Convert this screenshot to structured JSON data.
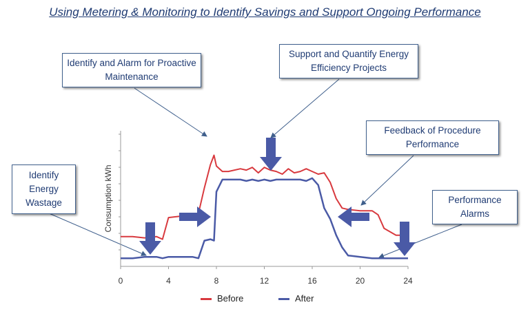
{
  "title": "Using Metering & Monitoring to Identify Savings and Support Ongoing Performance",
  "callouts": {
    "proactive": "Identify and Alarm for Proactive Maintenance",
    "support": "Support and Quantify Energy Efficiency Projects",
    "feedback": "Feedback of Procedure Performance",
    "wastage": "Identify Energy Wastage",
    "alarms": "Performance Alarms"
  },
  "colors": {
    "before": "#d8393e",
    "after": "#4a5aa6",
    "arrow": "#4a5aa6",
    "text": "#1f3b73"
  },
  "chart_data": {
    "type": "line",
    "title": "",
    "xlabel": "",
    "ylabel": "Consumption kWh",
    "xlim": [
      0,
      24
    ],
    "ylim": [
      0,
      10
    ],
    "xticks": [
      0,
      4,
      8,
      12,
      16,
      20,
      24
    ],
    "x": [
      0,
      1,
      2,
      3,
      3.5,
      4,
      5,
      6,
      6.5,
      7,
      7.5,
      7.8,
      8,
      8.5,
      9,
      10,
      10.5,
      11,
      11.5,
      12,
      12.5,
      13,
      13.5,
      14,
      14.5,
      15,
      15.5,
      16,
      16.5,
      17,
      17.5,
      18,
      18.5,
      19,
      20,
      21,
      21.5,
      22,
      23,
      24
    ],
    "series": [
      {
        "name": "Before",
        "values": [
          2.2,
          2.2,
          2.1,
          2.2,
          2.0,
          3.6,
          3.7,
          3.7,
          3.9,
          5.8,
          7.5,
          8.2,
          7.4,
          7.0,
          7.0,
          7.2,
          7.1,
          7.3,
          6.9,
          7.3,
          7.1,
          7.0,
          6.8,
          7.2,
          6.9,
          7.0,
          7.2,
          7.0,
          6.8,
          6.9,
          6.2,
          5.0,
          4.3,
          4.2,
          4.1,
          4.1,
          3.8,
          2.8,
          2.3,
          2.3
        ]
      },
      {
        "name": "After",
        "values": [
          0.6,
          0.6,
          0.7,
          0.7,
          0.6,
          0.7,
          0.7,
          0.7,
          0.6,
          1.9,
          2.0,
          1.9,
          5.5,
          6.4,
          6.4,
          6.4,
          6.3,
          6.4,
          6.3,
          6.4,
          6.3,
          6.4,
          6.4,
          6.4,
          6.4,
          6.4,
          6.3,
          6.5,
          6.0,
          4.3,
          3.5,
          2.3,
          1.4,
          0.8,
          0.7,
          0.6,
          0.6,
          0.6,
          0.6,
          0.6
        ]
      }
    ]
  },
  "legend": {
    "before": "Before",
    "after": "After"
  }
}
